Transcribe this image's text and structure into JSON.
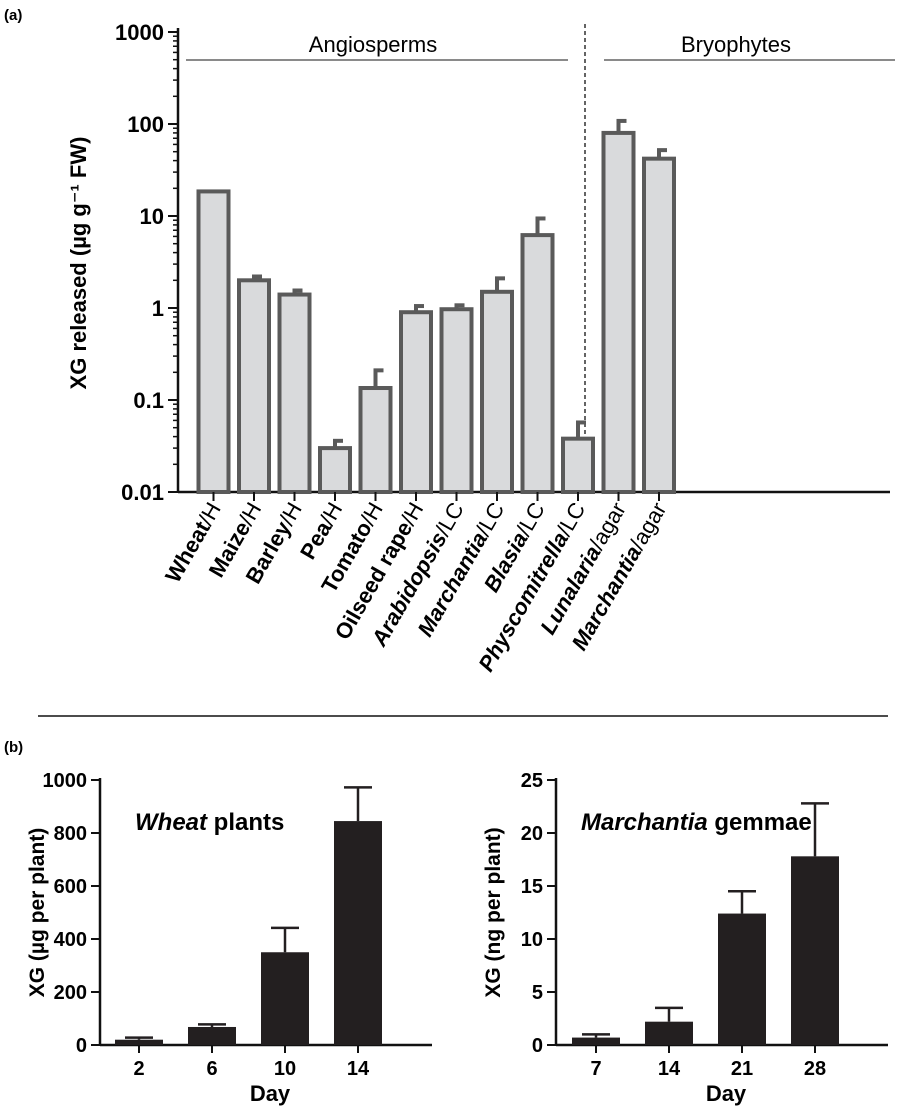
{
  "panels": {
    "a_label": "(a)",
    "b_label": "(b)"
  },
  "chart_data": [
    {
      "type": "bar",
      "panel": "(a)",
      "ylabel": "XG released (µg g⁻¹ FW)",
      "yscale": "log",
      "ylim": [
        0.01,
        1000
      ],
      "yticks": [
        "0.01",
        "0.1",
        "1",
        "10",
        "100",
        "1000"
      ],
      "groups": [
        {
          "label": "Angiosperms",
          "range": [
            0,
            6
          ]
        },
        {
          "label": "Bryophytes",
          "range": [
            7,
            11
          ]
        }
      ],
      "categories": [
        {
          "name": "Wheat",
          "method": "/H",
          "italic": false
        },
        {
          "name": "Maize",
          "method": "/H",
          "italic": false
        },
        {
          "name": "Barley",
          "method": "/H",
          "italic": false
        },
        {
          "name": "Pea",
          "method": "/H",
          "italic": false
        },
        {
          "name": "Tomato",
          "method": "/H",
          "italic": false
        },
        {
          "name": "Oilseed rape",
          "method": "/H",
          "italic": false
        },
        {
          "name": "Arabidopsis",
          "method": "/LC",
          "italic": true
        },
        {
          "name": "Marchantia",
          "method": "/LC",
          "italic": true
        },
        {
          "name": "Blasia",
          "method": "/LC",
          "italic": true
        },
        {
          "name": "Physcomitrella",
          "method": "/LC",
          "italic": true
        },
        {
          "name": "Lunalaria",
          "method": "/agar",
          "italic": true
        },
        {
          "name": "Marchantia",
          "method": "/agar",
          "italic": true
        }
      ],
      "values": [
        18.5,
        2.0,
        1.4,
        0.03,
        0.135,
        0.9,
        0.97,
        1.5,
        6.2,
        0.038,
        80,
        42
      ],
      "errors": [
        0,
        2.2,
        1.55,
        0.036,
        0.21,
        1.05,
        1.07,
        2.1,
        9.4,
        0.057,
        108,
        52
      ]
    },
    {
      "type": "bar",
      "panel": "(b) left",
      "title": "Wheat plants",
      "title_italic_part": "Wheat",
      "title_plain_part": " plants",
      "xlabel": "Day",
      "ylabel": "XG (µg per plant)",
      "ylim": [
        0,
        1000
      ],
      "yticks": [
        0,
        200,
        400,
        600,
        800,
        1000
      ],
      "categories": [
        "2",
        "6",
        "10",
        "14"
      ],
      "values": [
        20,
        68,
        350,
        845
      ],
      "errors": [
        28,
        78,
        442,
        972
      ]
    },
    {
      "type": "bar",
      "panel": "(b) right",
      "title": "Marchantia gemmae",
      "title_italic_part": "Marchantia",
      "title_plain_part": " gemmae",
      "xlabel": "Day",
      "ylabel": "XG (ng per plant)",
      "ylim": [
        0,
        25
      ],
      "yticks": [
        0,
        5,
        10,
        15,
        20,
        25
      ],
      "categories": [
        "7",
        "14",
        "21",
        "28"
      ],
      "values": [
        0.7,
        2.2,
        12.4,
        17.8
      ],
      "errors": [
        1.0,
        3.5,
        14.5,
        22.8
      ]
    }
  ],
  "colors": {
    "bar_a_fill": "#d9dadc",
    "bar_a_stroke": "#5a5a5a",
    "bar_b_fill": "#231f20",
    "axis": "#111111",
    "group_line": "#8a8a8a"
  }
}
